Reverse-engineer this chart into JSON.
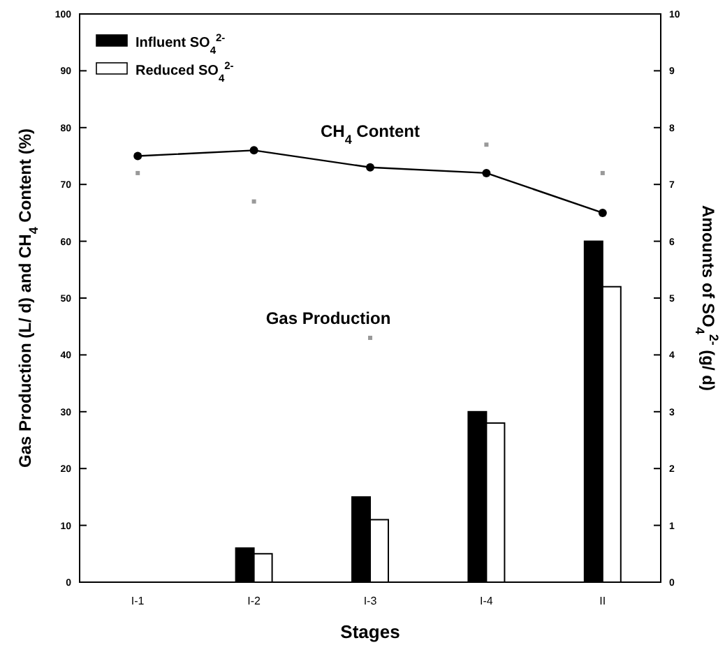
{
  "chart_data": {
    "type": "bar",
    "xlabel": "Stages",
    "ylabel": "Gas Production (L/ d) and CH$_{4}$ Content (%)",
    "y2label": "Amounts of SO$_{4}$$^{2-}$ (g/ d)",
    "categories": [
      "I-1",
      "I-2",
      "I-3",
      "I-4",
      "II"
    ],
    "series": [
      {
        "name": "Influent SO$_{4}$$^{2-}$",
        "axis": "y2",
        "color": "#000000",
        "values": [
          0,
          0.6,
          1.5,
          3.0,
          6.0
        ]
      },
      {
        "name": "Reduced SO$_{4}$$^{2-}$",
        "axis": "y2",
        "color": "#ffffff",
        "values": [
          0,
          0.5,
          1.1,
          2.8,
          5.2
        ]
      },
      {
        "name": "CH$_{4}$ Content",
        "type": "line",
        "color": "#000000",
        "marker": "circle",
        "values": [
          75,
          76,
          73,
          72,
          65
        ]
      },
      {
        "name": "Gas Production",
        "type": "scatter",
        "color": "#999999",
        "marker": "square",
        "values": [
          72,
          67,
          43,
          77,
          72
        ]
      }
    ],
    "ylim": [
      0,
      100
    ],
    "yticks": [
      0,
      10,
      20,
      30,
      40,
      50,
      60,
      70,
      80,
      90,
      100
    ],
    "y2lim": [
      0,
      10
    ],
    "y2ticks": [
      0,
      1,
      2,
      3,
      4,
      5,
      6,
      7,
      8,
      9,
      10
    ],
    "grid": false,
    "legend": "top left"
  }
}
